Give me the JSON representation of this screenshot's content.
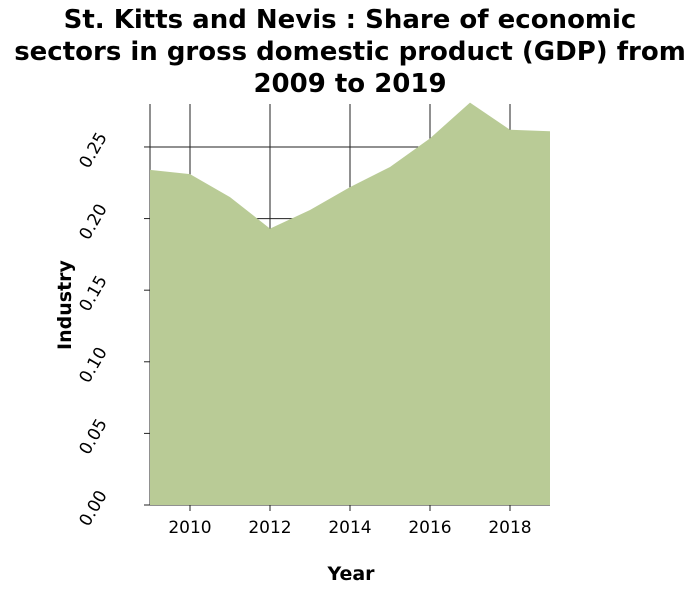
{
  "chart_data": {
    "type": "area",
    "title": "St. Kitts and Nevis : Share of economic sectors in gross domestic product (GDP) from 2009 to 2019",
    "title_lines": [
      "St. Kitts and Nevis : Share of economic",
      "sectors in gross domestic product (GDP) from",
      "2009 to 2019"
    ],
    "xlabel": "Year",
    "ylabel": "Industry",
    "x": [
      2009,
      2010,
      2011,
      2012,
      2013,
      2014,
      2015,
      2016,
      2017,
      2018,
      2019
    ],
    "series": [
      {
        "values": [
          0.234,
          0.231,
          0.215,
          0.193,
          0.206,
          0.222,
          0.236,
          0.256,
          0.281,
          0.262,
          0.261
        ],
        "color": "#b9cb96"
      }
    ],
    "xlim": [
      2009,
      2019
    ],
    "ylim": [
      0,
      0.28
    ],
    "x_ticks": [
      2010,
      2012,
      2014,
      2016,
      2018
    ],
    "x_tick_labels": [
      "2010",
      "2012",
      "2014",
      "2016",
      "2018"
    ],
    "y_ticks": [
      0,
      0.05,
      0.1,
      0.15,
      0.2,
      0.25
    ],
    "y_tick_labels": [
      "0.00",
      "0.05",
      "0.10",
      "0.15",
      "0.20",
      "0.25"
    ],
    "grid": true,
    "legend": "none"
  }
}
